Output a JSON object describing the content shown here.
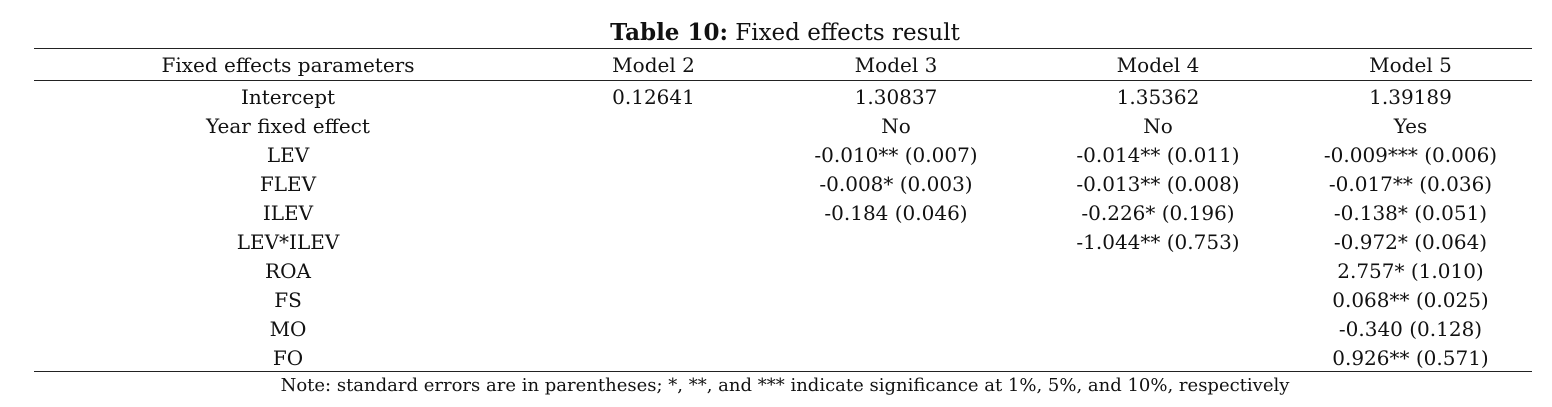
{
  "caption": {
    "label": "Table 10:",
    "title": "Fixed effects result"
  },
  "table": {
    "headers": [
      "Fixed effects parameters",
      "Model 2",
      "Model 3",
      "Model 4",
      "Model 5"
    ],
    "rows": [
      [
        "Intercept",
        "0.12641",
        "1.30837",
        "1.35362",
        "1.39189"
      ],
      [
        "Year fixed effect",
        "",
        "No",
        "No",
        "Yes"
      ],
      [
        "LEV",
        "",
        "-0.010** (0.007)",
        "-0.014** (0.011)",
        "-0.009*** (0.006)"
      ],
      [
        "FLEV",
        "",
        "-0.008* (0.003)",
        "-0.013** (0.008)",
        "-0.017** (0.036)"
      ],
      [
        "ILEV",
        "",
        "-0.184 (0.046)",
        "-0.226* (0.196)",
        "-0.138* (0.051)"
      ],
      [
        "LEV*ILEV",
        "",
        "",
        "-1.044** (0.753)",
        "-0.972* (0.064)"
      ],
      [
        "ROA",
        "",
        "",
        "",
        "2.757* (1.010)"
      ],
      [
        "FS",
        "",
        "",
        "",
        "0.068** (0.025)"
      ],
      [
        "MO",
        "",
        "",
        "",
        "-0.340 (0.128)"
      ],
      [
        "FO",
        "",
        "",
        "",
        "0.926** (0.571)"
      ]
    ]
  },
  "note": "Note: standard errors are in parentheses; *, **, and *** indicate significance at 1%, 5%, and 10%, respectively"
}
